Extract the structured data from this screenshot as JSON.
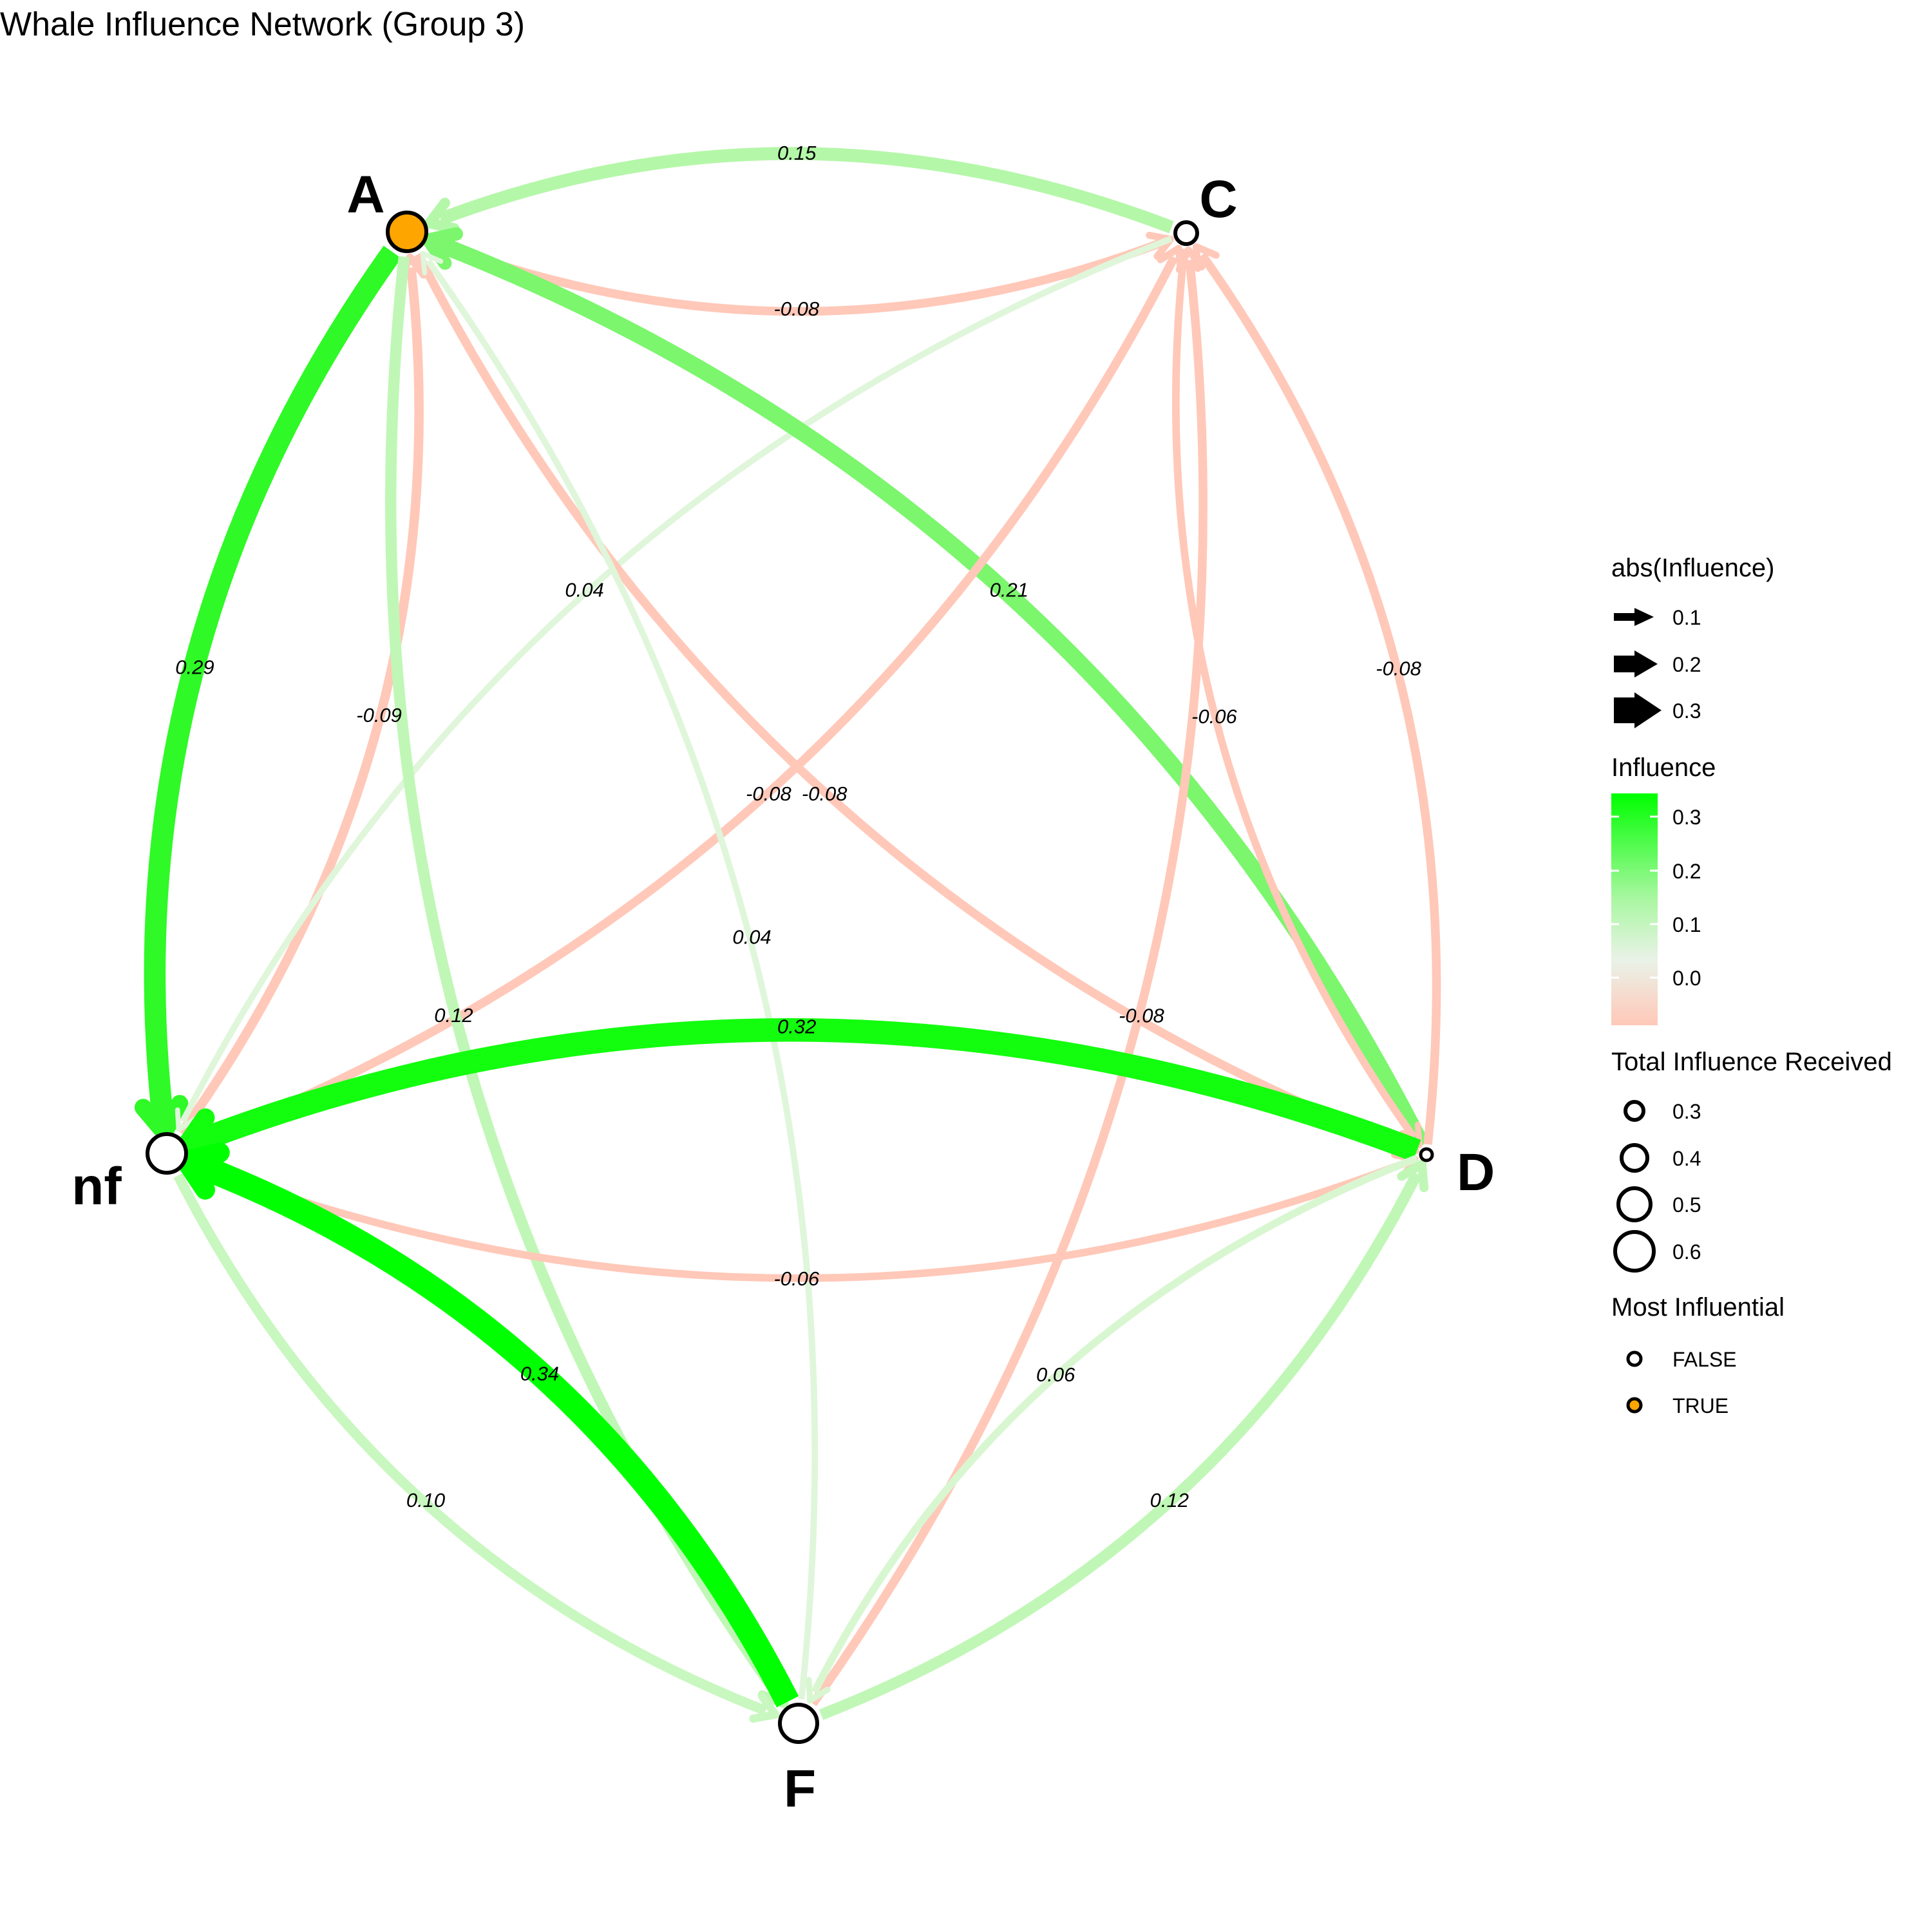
{
  "title": "Whale Influence Network (Group 3)",
  "colors": {
    "positive_high": "#00ff00",
    "zero": "#f0f0f0",
    "negative": "#ffc8b8",
    "most_influential": "#ffa500",
    "node_fill": "#ffffff",
    "node_stroke": "#000000"
  },
  "nodes": [
    {
      "id": "A",
      "label": "A",
      "most_influential": true,
      "size": 0.5
    },
    {
      "id": "C",
      "label": "C",
      "most_influential": false,
      "size": 0.3
    },
    {
      "id": "D",
      "label": "D",
      "most_influential": false,
      "size": 0.2
    },
    {
      "id": "F",
      "label": "F",
      "most_influential": false,
      "size": 0.5
    },
    {
      "id": "nf",
      "label": "nf",
      "most_influential": false,
      "size": 0.55
    }
  ],
  "edges": [
    {
      "from": "C",
      "to": "A",
      "value": 0.15,
      "label": "0.15"
    },
    {
      "from": "A",
      "to": "C",
      "value": -0.08,
      "label": "-0.08"
    },
    {
      "from": "A",
      "to": "nf",
      "value": 0.29,
      "label": "0.29"
    },
    {
      "from": "nf",
      "to": "A",
      "value": -0.09,
      "label": "-0.09"
    },
    {
      "from": "C",
      "to": "nf",
      "value": 0.04,
      "label": "0.04"
    },
    {
      "from": "A",
      "to": "D",
      "value": -0.08,
      "label": "-0.08"
    },
    {
      "from": "D",
      "to": "A",
      "value": 0.21,
      "label": "0.21"
    },
    {
      "from": "nf",
      "to": "C",
      "value": -0.08,
      "label": "-0.08"
    },
    {
      "from": "A",
      "to": "F",
      "value": 0.12,
      "label": "0.12"
    },
    {
      "from": "F",
      "to": "A",
      "value": 0.04,
      "label": "0.04"
    },
    {
      "from": "F",
      "to": "C",
      "value": -0.08,
      "label": "-0.08"
    },
    {
      "from": "D",
      "to": "C",
      "value": -0.08,
      "label": "-0.08"
    },
    {
      "from": "C",
      "to": "D",
      "value": -0.06,
      "label": "-0.06"
    },
    {
      "from": "nf",
      "to": "D",
      "value": -0.06,
      "label": "-0.06"
    },
    {
      "from": "D",
      "to": "nf",
      "value": 0.32,
      "label": "0.32"
    },
    {
      "from": "F",
      "to": "nf",
      "value": 0.34,
      "label": "0.34"
    },
    {
      "from": "nf",
      "to": "F",
      "value": 0.1,
      "label": "0.10"
    },
    {
      "from": "D",
      "to": "F",
      "value": 0.06,
      "label": "0.06"
    },
    {
      "from": "F",
      "to": "D",
      "value": 0.12,
      "label": "0.12"
    }
  ],
  "legend": {
    "width_title": "abs(Influence)",
    "width_items": [
      {
        "label": "0.1",
        "value": 0.1
      },
      {
        "label": "0.2",
        "value": 0.2
      },
      {
        "label": "0.3",
        "value": 0.3
      }
    ],
    "color_title": "Influence",
    "color_ticks": [
      "0.3",
      "0.2",
      "0.1",
      "0.0"
    ],
    "size_title": "Total Influence Received",
    "size_items": [
      {
        "label": "0.3",
        "value": 0.3
      },
      {
        "label": "0.4",
        "value": 0.4
      },
      {
        "label": "0.5",
        "value": 0.5
      },
      {
        "label": "0.6",
        "value": 0.6
      }
    ],
    "mi_title": "Most Influential",
    "mi_items": [
      {
        "label": "FALSE",
        "color": "#ffffff"
      },
      {
        "label": "TRUE",
        "color": "#ffa500"
      }
    ]
  }
}
